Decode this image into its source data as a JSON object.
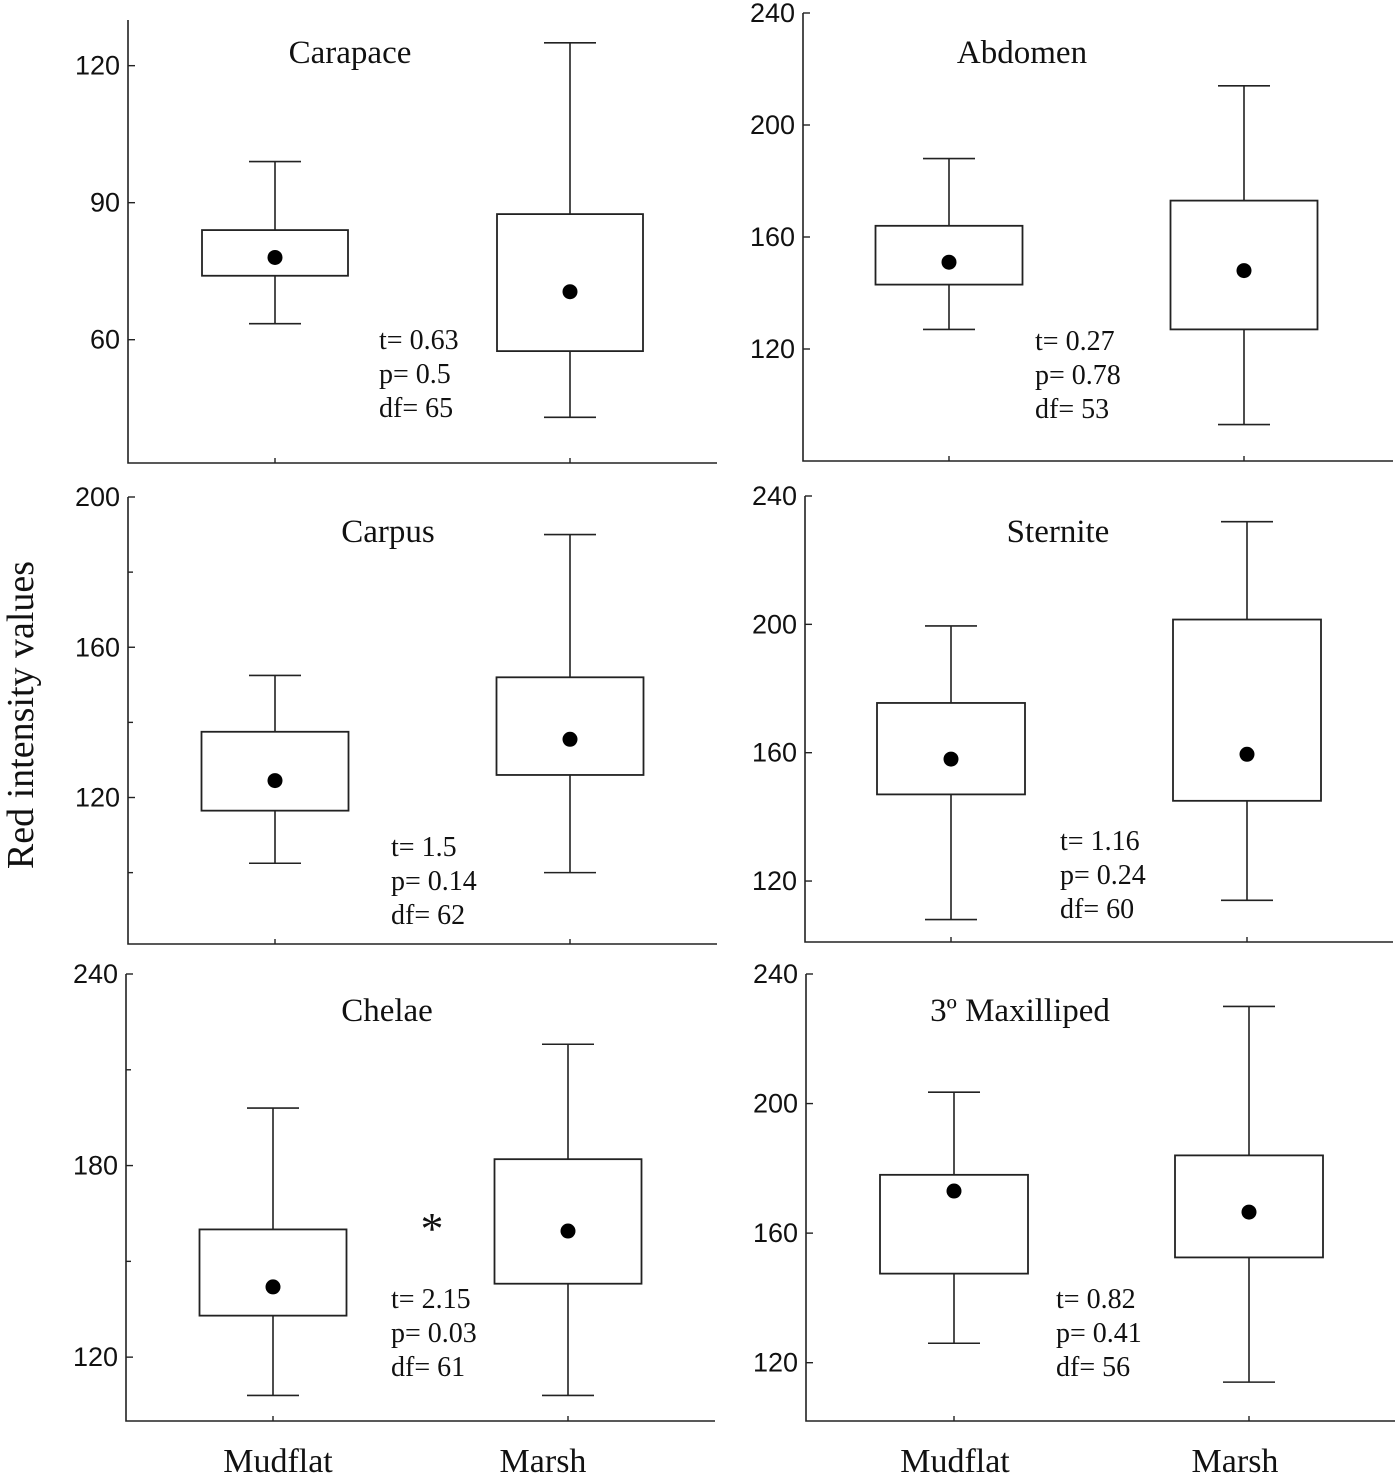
{
  "figure": {
    "y_axis_title": "Red intensity values",
    "x_group_labels": [
      "Mudflat",
      "Marsh"
    ]
  },
  "chart_data": [
    {
      "type": "box",
      "title": "Carapace",
      "categories": [
        "Mudflat",
        "Marsh"
      ],
      "ylim": [
        33,
        130
      ],
      "yticks": [
        60,
        90,
        120
      ],
      "minor_yticks": [],
      "boxes": [
        {
          "name": "Mudflat",
          "whisker_low": 63.5,
          "q1": 74,
          "mean": 78,
          "q3": 84,
          "whisker_high": 99
        },
        {
          "name": "Marsh",
          "whisker_low": 43,
          "q1": 57.5,
          "mean": 70.5,
          "q3": 87.5,
          "whisker_high": 125
        }
      ],
      "stats": {
        "t": "t= 0.63",
        "p": "p= 0.5",
        "df": "df= 65"
      },
      "significance": ""
    },
    {
      "type": "box",
      "title": "Abdomen",
      "categories": [
        "Mudflat",
        "Marsh"
      ],
      "ylim": [
        80,
        240
      ],
      "yticks": [
        120,
        160,
        200,
        240
      ],
      "minor_yticks": [],
      "boxes": [
        {
          "name": "Mudflat",
          "whisker_low": 127,
          "q1": 143,
          "mean": 151,
          "q3": 164,
          "whisker_high": 188
        },
        {
          "name": "Marsh",
          "whisker_low": 93,
          "q1": 127,
          "mean": 148,
          "q3": 173,
          "whisker_high": 214
        }
      ],
      "stats": {
        "t": "t= 0.27",
        "p": "p= 0.78",
        "df": "df= 53"
      },
      "significance": ""
    },
    {
      "type": "box",
      "title": "Carpus",
      "categories": [
        "Mudflat",
        "Marsh"
      ],
      "ylim": [
        81,
        200
      ],
      "yticks": [
        120,
        160,
        200
      ],
      "minor_yticks": [
        100,
        140,
        180
      ],
      "boxes": [
        {
          "name": "Mudflat",
          "whisker_low": 102.5,
          "q1": 116.5,
          "mean": 124.5,
          "q3": 137.5,
          "whisker_high": 152.5
        },
        {
          "name": "Marsh",
          "whisker_low": 100,
          "q1": 126,
          "mean": 135.5,
          "q3": 152,
          "whisker_high": 190
        }
      ],
      "stats": {
        "t": "t= 1.5",
        "p": "p= 0.14",
        "df": "df= 62"
      },
      "significance": ""
    },
    {
      "type": "box",
      "title": "Sternite",
      "categories": [
        "Mudflat",
        "Marsh"
      ],
      "ylim": [
        101,
        240
      ],
      "yticks": [
        120,
        160,
        200,
        240
      ],
      "minor_yticks": [],
      "boxes": [
        {
          "name": "Mudflat",
          "whisker_low": 108,
          "q1": 147,
          "mean": 158,
          "q3": 175.5,
          "whisker_high": 199.5
        },
        {
          "name": "Marsh",
          "whisker_low": 114,
          "q1": 145,
          "mean": 159.5,
          "q3": 201.5,
          "whisker_high": 232
        }
      ],
      "stats": {
        "t": "t= 1.16",
        "p": "p= 0.24",
        "df": "df= 60"
      },
      "significance": ""
    },
    {
      "type": "box",
      "title": "Chelae",
      "categories": [
        "Mudflat",
        "Marsh"
      ],
      "ylim": [
        100,
        240
      ],
      "yticks": [
        120,
        180,
        240
      ],
      "minor_yticks": [
        150,
        210
      ],
      "boxes": [
        {
          "name": "Mudflat",
          "whisker_low": 108,
          "q1": 133,
          "mean": 142,
          "q3": 160,
          "whisker_high": 198
        },
        {
          "name": "Marsh",
          "whisker_low": 108,
          "q1": 143,
          "mean": 159.5,
          "q3": 182,
          "whisker_high": 218
        }
      ],
      "stats": {
        "t": "t= 2.15",
        "p": "p= 0.03",
        "df": "df= 61"
      },
      "significance": "*"
    },
    {
      "type": "box",
      "title": "3º Maxilliped",
      "categories": [
        "Mudflat",
        "Marsh"
      ],
      "ylim": [
        102,
        240
      ],
      "yticks": [
        120,
        160,
        200,
        240
      ],
      "minor_yticks": [],
      "boxes": [
        {
          "name": "Mudflat",
          "whisker_low": 126,
          "q1": 147.5,
          "mean": 173,
          "q3": 178,
          "whisker_high": 203.5
        },
        {
          "name": "Marsh",
          "whisker_low": 114,
          "q1": 152.5,
          "mean": 166.5,
          "q3": 184,
          "whisker_high": 230
        }
      ],
      "stats": {
        "t": "t= 0.82",
        "p": "p= 0.41",
        "df": "df= 56"
      },
      "significance": ""
    }
  ]
}
